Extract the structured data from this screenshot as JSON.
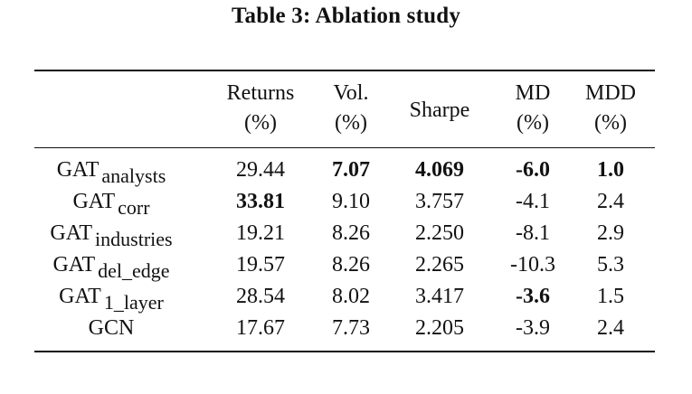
{
  "caption": "Table 3: Ablation study",
  "headers": [
    {
      "line1": "Returns",
      "line2": "(%)"
    },
    {
      "line1": "Vol.",
      "line2": "(%)"
    },
    {
      "line1": "Sharpe",
      "line2": ""
    },
    {
      "line1": "MD",
      "line2": "(%)"
    },
    {
      "line1": "MDD",
      "line2": "(%)"
    }
  ],
  "rows": [
    {
      "model": "GAT",
      "sub": "analysts",
      "returns": "29.44",
      "vol": "7.07",
      "sharpe": "4.069",
      "md": "-6.0",
      "mdd": "1.0"
    },
    {
      "model": "GAT",
      "sub": "corr",
      "returns": "33.81",
      "vol": "9.10",
      "sharpe": "3.757",
      "md": "-4.1",
      "mdd": "2.4"
    },
    {
      "model": "GAT",
      "sub": "industries",
      "returns": "19.21",
      "vol": "8.26",
      "sharpe": "2.250",
      "md": "-8.1",
      "mdd": "2.9"
    },
    {
      "model": "GAT",
      "sub": "del_edge",
      "returns": "19.57",
      "vol": "8.26",
      "sharpe": "2.265",
      "md": "-10.3",
      "mdd": "5.3"
    },
    {
      "model": "GAT",
      "sub": "1_layer",
      "returns": "28.54",
      "vol": "8.02",
      "sharpe": "3.417",
      "md": "-3.6",
      "mdd": "1.5"
    },
    {
      "model": "GCN",
      "sub": "",
      "returns": "17.67",
      "vol": "7.73",
      "sharpe": "2.205",
      "md": "-3.9",
      "mdd": "2.4"
    }
  ]
}
